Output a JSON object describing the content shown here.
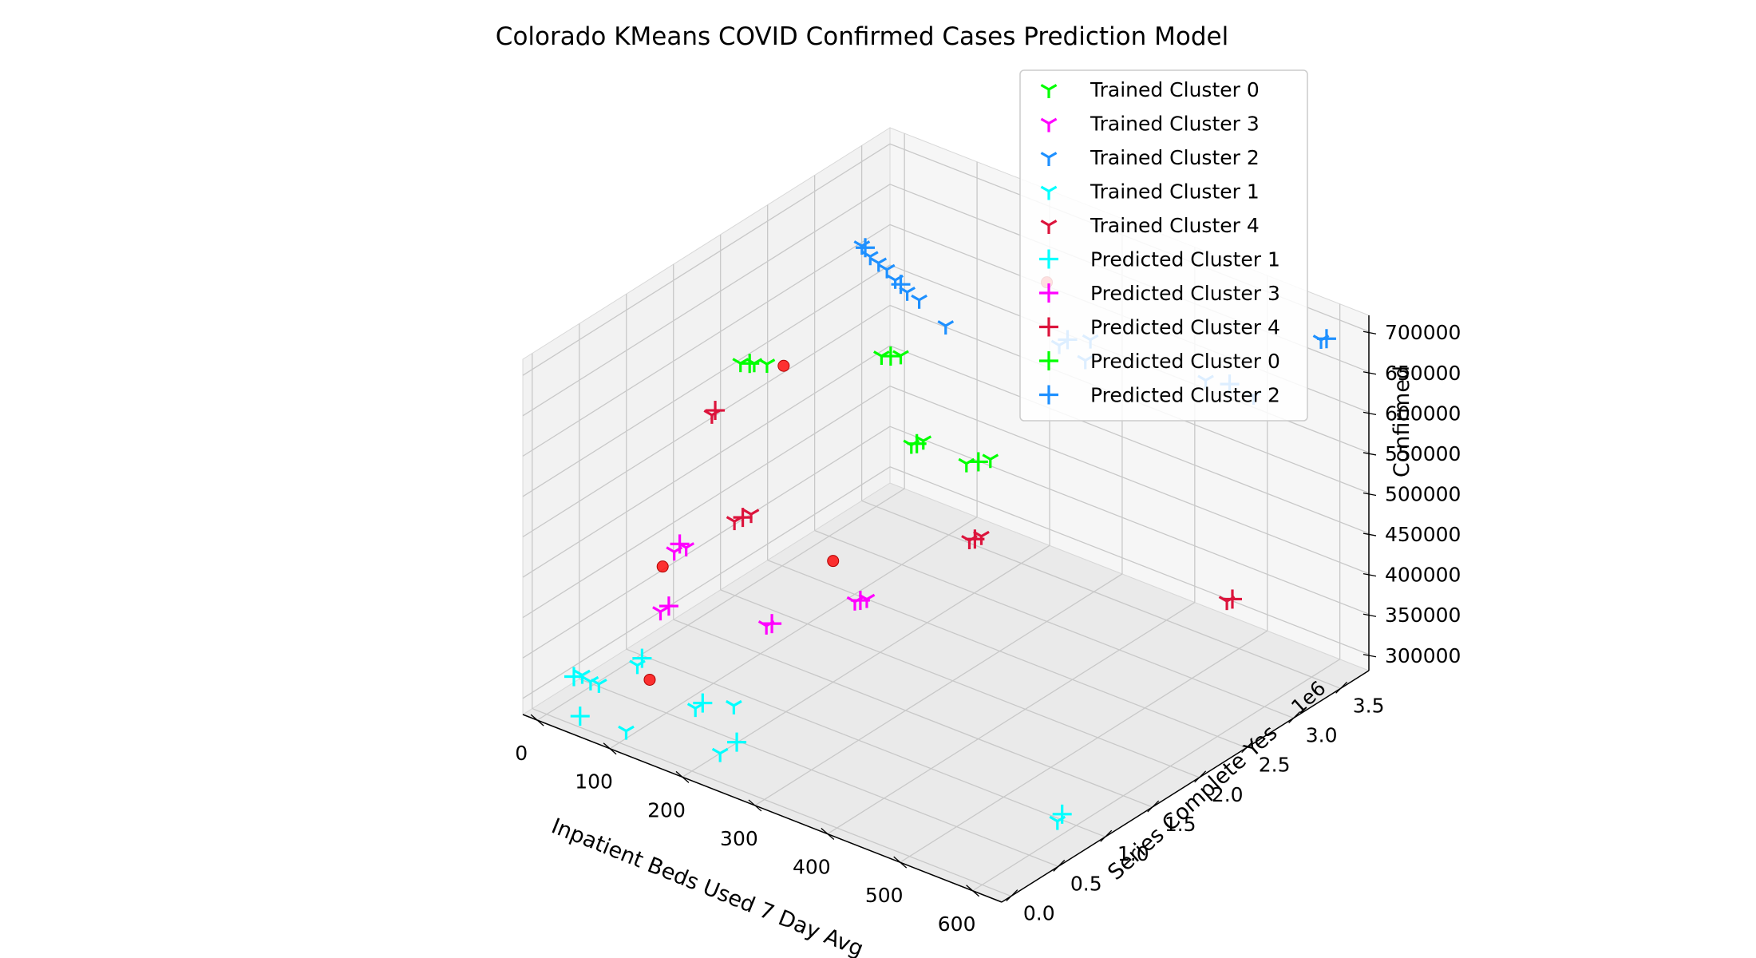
{
  "chart_data": {
    "type": "scatter",
    "projection": "3d",
    "title": "Colorado KMeans COVID Confirmed Cases Prediction Model",
    "xlabel": "Inpatient Beds Used 7 Day Avg",
    "ylabel": "Series Complete Yes",
    "zlabel": "Confirmed",
    "y_offset_label": "1e6",
    "xlim": [
      -20,
      640
    ],
    "ylim": [
      -0.1,
      3.8
    ],
    "zlim": [
      280000,
      720000
    ],
    "x_ticks": [
      0,
      100,
      200,
      300,
      400,
      500,
      600
    ],
    "x_tick_labels": [
      "0",
      "100",
      "200",
      "300",
      "400",
      "500",
      "600"
    ],
    "y_ticks": [
      0.0,
      0.5,
      1.0,
      1.5,
      2.0,
      2.5,
      3.0,
      3.5
    ],
    "y_tick_labels": [
      "0.0",
      "0.5",
      "1.0",
      "1.5",
      "2.0",
      "2.5",
      "3.0",
      "3.5"
    ],
    "z_ticks": [
      300000,
      350000,
      400000,
      450000,
      500000,
      550000,
      600000,
      650000,
      700000
    ],
    "z_tick_labels": [
      "300000",
      "350000",
      "400000",
      "450000",
      "500000",
      "550000",
      "600000",
      "650000",
      "700000"
    ],
    "grid": true,
    "legend_position": "top-right",
    "colors": {
      "cluster_0": "#00ff00",
      "cluster_1": "#00ffff",
      "cluster_2": "#1e90ff",
      "cluster_3": "#ff00ff",
      "cluster_4": "#dc143c",
      "centroid": "#ff0000"
    },
    "series": [
      {
        "name": "Trained Cluster 0",
        "marker": "tri_down",
        "color": "#00ff00",
        "points": [
          [
            40,
            1.75,
            600000
          ],
          [
            55,
            1.78,
            603000
          ],
          [
            70,
            1.8,
            606000
          ],
          [
            230,
            2.1,
            540000
          ],
          [
            240,
            2.15,
            545000
          ],
          [
            280,
            2.3,
            520000
          ],
          [
            300,
            2.4,
            525000
          ],
          [
            150,
            2.4,
            600000
          ],
          [
            170,
            2.45,
            604000
          ]
        ]
      },
      {
        "name": "Trained Cluster 3",
        "marker": "tri_down",
        "color": "#ff00ff",
        "points": [
          [
            20,
            1.2,
            400000
          ],
          [
            30,
            1.25,
            405000
          ],
          [
            40,
            0.9,
            355000
          ],
          [
            160,
            1.1,
            365000
          ],
          [
            230,
            1.5,
            390000
          ],
          [
            240,
            1.55,
            393000
          ]
        ]
      },
      {
        "name": "Trained Cluster 2",
        "marker": "tri_down",
        "color": "#1e90ff",
        "points": [
          [
            110,
            2.5,
            715000
          ],
          [
            115,
            2.55,
            700000
          ],
          [
            120,
            2.6,
            690000
          ],
          [
            125,
            2.65,
            680000
          ],
          [
            130,
            2.7,
            665000
          ],
          [
            140,
            2.75,
            650000
          ],
          [
            150,
            2.8,
            640000
          ],
          [
            180,
            2.85,
            615000
          ],
          [
            330,
            2.9,
            640000
          ],
          [
            360,
            3.0,
            650000
          ],
          [
            340,
            3.1,
            610000
          ],
          [
            480,
            3.3,
            620000
          ],
          [
            520,
            3.5,
            600000
          ],
          [
            600,
            3.6,
            690000
          ]
        ]
      },
      {
        "name": "Trained Cluster 1",
        "marker": "tri_down",
        "color": "#00ffff",
        "points": [
          [
            10,
            0.3,
            310000
          ],
          [
            15,
            0.35,
            300000
          ],
          [
            20,
            0.4,
            295000
          ],
          [
            60,
            0.5,
            325000
          ],
          [
            90,
            0.15,
            280000
          ],
          [
            140,
            0.5,
            300000
          ],
          [
            180,
            0.6,
            310000
          ],
          [
            200,
            0.3,
            280000
          ],
          [
            600,
            0.8,
            300000
          ]
        ]
      },
      {
        "name": "Trained Cluster 4",
        "marker": "tri_down",
        "color": "#dc143c",
        "points": [
          [
            20,
            1.6,
            540000
          ],
          [
            90,
            1.3,
            455000
          ],
          [
            100,
            1.4,
            460000
          ],
          [
            310,
            2.1,
            450000
          ],
          [
            320,
            2.15,
            455000
          ],
          [
            600,
            2.6,
            440000
          ]
        ]
      },
      {
        "name": "Predicted Cluster 1",
        "marker": "plus",
        "color": "#00ffff",
        "points": [
          [
            5,
            0.25,
            310000
          ],
          [
            60,
            0.55,
            330000
          ],
          [
            150,
            0.5,
            310000
          ],
          [
            210,
            0.4,
            290000
          ],
          [
            20,
            0.2,
            270000
          ],
          [
            600,
            0.85,
            305000
          ]
        ]
      },
      {
        "name": "Predicted Cluster 3",
        "marker": "plus",
        "color": "#ff00ff",
        "points": [
          [
            25,
            1.22,
            410000
          ],
          [
            45,
            0.95,
            360000
          ],
          [
            165,
            1.12,
            368000
          ],
          [
            235,
            1.52,
            392000
          ]
        ]
      },
      {
        "name": "Predicted Cluster 4",
        "marker": "plus",
        "color": "#dc143c",
        "points": [
          [
            22,
            1.62,
            545000
          ],
          [
            95,
            1.35,
            458000
          ],
          [
            315,
            2.12,
            452000
          ],
          [
            605,
            2.62,
            443000
          ]
        ]
      },
      {
        "name": "Predicted Cluster 0",
        "marker": "plus",
        "color": "#00ff00",
        "points": [
          [
            50,
            1.77,
            602000
          ],
          [
            235,
            2.12,
            542000
          ],
          [
            290,
            2.35,
            522000
          ],
          [
            160,
            2.42,
            602000
          ]
        ]
      },
      {
        "name": "Predicted Cluster 2",
        "marker": "plus",
        "color": "#1e90ff",
        "points": [
          [
            112,
            2.52,
            712000
          ],
          [
            135,
            2.72,
            660000
          ],
          [
            335,
            2.95,
            645000
          ],
          [
            500,
            3.4,
            615000
          ],
          [
            605,
            3.62,
            692000
          ]
        ]
      }
    ],
    "centroids": {
      "marker": "circle",
      "color": "#ff0000",
      "points": [
        [
          90,
          0.4,
          325000
        ],
        [
          30,
          1.0,
          400000
        ],
        [
          200,
          1.5,
          430000
        ],
        [
          80,
          1.9,
          600000
        ],
        [
          300,
          3.0,
          700000
        ]
      ]
    }
  }
}
